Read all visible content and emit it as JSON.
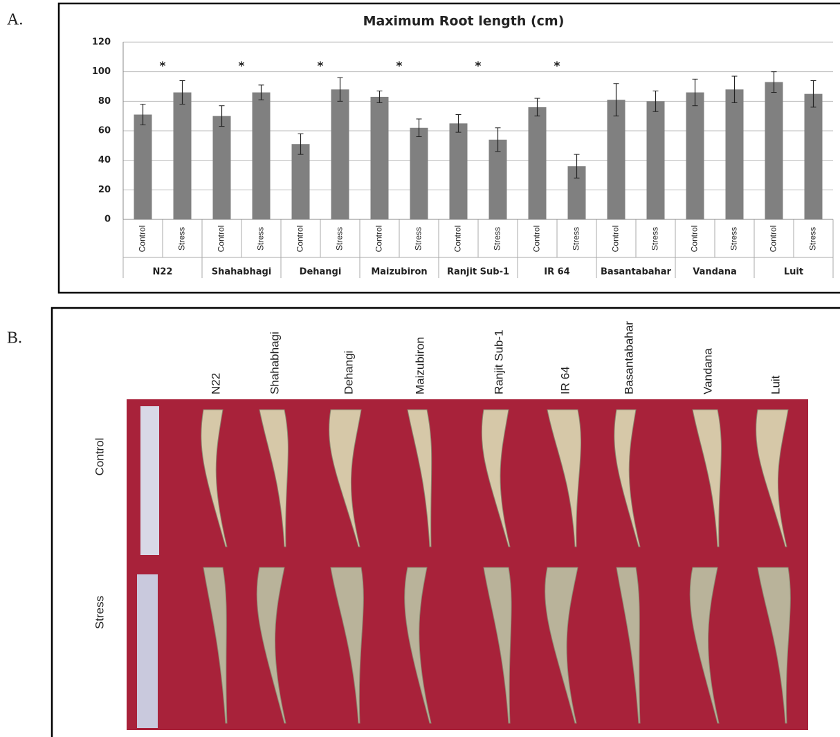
{
  "panel_labels": [
    "A.",
    "B."
  ],
  "chart_data": {
    "type": "bar",
    "title": "Maximum Root length (cm)",
    "categories": [
      "N22",
      "Shahabhagi",
      "Dehangi",
      "Maizubiron",
      "Ranjit Sub-1",
      "IR 64",
      "Basantabahar",
      "Vandana",
      "Luit"
    ],
    "series": [
      {
        "name": "Control",
        "color": "#808080",
        "values": [
          71,
          70,
          51,
          83,
          65,
          76,
          81,
          86,
          93
        ],
        "errors": [
          7,
          7,
          7,
          4,
          6,
          6,
          11,
          9,
          7
        ]
      },
      {
        "name": "Stress",
        "color": "#808080",
        "values": [
          86,
          86,
          88,
          62,
          54,
          36,
          80,
          88,
          85
        ],
        "errors": [
          8,
          5,
          8,
          6,
          8,
          8,
          7,
          9,
          9
        ]
      }
    ],
    "significance": [
      "*",
      "*",
      "*",
      "*",
      "*",
      "*",
      null,
      null,
      null
    ],
    "ylim": [
      0,
      120
    ],
    "yticks": [
      0,
      20,
      40,
      60,
      80,
      100,
      120
    ],
    "grid": true
  },
  "photo": {
    "columns": [
      "N22",
      "Shahabhagi",
      "Dehangi",
      "Maizubiron",
      "Ranjit Sub-1",
      "IR 64",
      "Basantabahar",
      "Vandana",
      "Luit"
    ],
    "rows": [
      "Control",
      "Stress"
    ]
  }
}
